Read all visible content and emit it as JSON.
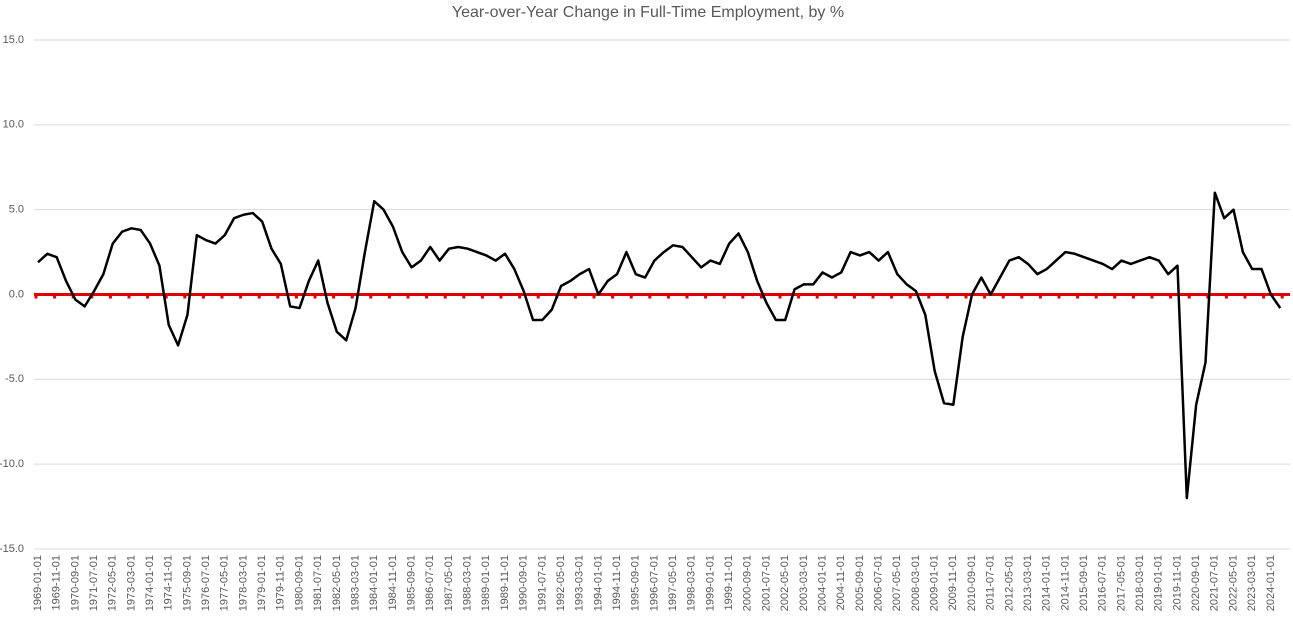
{
  "chart_data": {
    "type": "line",
    "title": "Year-over-Year Change in Full-Time Employment, by %",
    "categories": [
      "1969-01-01",
      null,
      "1969-11-01",
      null,
      "1970-09-01",
      null,
      "1971-07-01",
      null,
      "1972-05-01",
      null,
      "1973-03-01",
      null,
      "1974-01-01",
      null,
      "1974-11-01",
      null,
      "1975-09-01",
      null,
      "1976-07-01",
      null,
      "1977-05-01",
      null,
      "1978-03-01",
      null,
      "1979-01-01",
      null,
      "1979-11-01",
      null,
      "1980-09-01",
      null,
      "1981-07-01",
      null,
      "1982-05-01",
      null,
      "1983-03-01",
      null,
      "1984-01-01",
      null,
      "1984-11-01",
      null,
      "1985-09-01",
      null,
      "1986-07-01",
      null,
      "1987-05-01",
      null,
      "1988-03-01",
      null,
      "1989-01-01",
      null,
      "1989-11-01",
      null,
      "1990-09-01",
      null,
      "1991-07-01",
      null,
      "1992-05-01",
      null,
      "1993-03-01",
      null,
      "1994-01-01",
      null,
      "1994-11-01",
      null,
      "1995-09-01",
      null,
      "1996-07-01",
      null,
      "1997-05-01",
      null,
      "1998-03-01",
      null,
      "1999-01-01",
      null,
      "1999-11-01",
      null,
      "2000-09-01",
      null,
      "2001-07-01",
      null,
      "2002-05-01",
      null,
      "2003-03-01",
      null,
      "2004-01-01",
      null,
      "2004-11-01",
      null,
      "2005-09-01",
      null,
      "2006-07-01",
      null,
      "2007-05-01",
      null,
      "2008-03-01",
      null,
      "2009-01-01",
      null,
      "2009-11-01",
      null,
      "2010-09-01",
      null,
      "2011-07-01",
      null,
      "2012-05-01",
      null,
      "2013-03-01",
      null,
      "2014-01-01",
      null,
      "2014-11-01",
      null,
      "2015-09-01",
      null,
      "2016-07-01",
      null,
      "2017-05-01",
      null,
      "2018-03-01",
      null,
      "2019-01-01",
      null,
      "2019-11-01",
      null,
      "2020-09-01",
      null,
      "2021-07-01",
      null,
      "2022-05-01",
      null,
      "2023-03-01",
      null,
      "2024-01-01",
      null
    ],
    "values": [
      1.9,
      2.4,
      2.2,
      0.8,
      -0.3,
      -0.7,
      0.2,
      1.2,
      3.0,
      3.7,
      3.9,
      3.8,
      3.0,
      1.7,
      -1.8,
      -3.0,
      -1.2,
      3.5,
      3.2,
      3.0,
      3.5,
      4.5,
      4.7,
      4.8,
      4.3,
      2.7,
      1.8,
      -0.7,
      -0.8,
      0.8,
      2.0,
      -0.5,
      -2.2,
      -2.7,
      -0.8,
      2.5,
      5.5,
      5.0,
      4.0,
      2.5,
      1.6,
      2.0,
      2.8,
      2.0,
      2.7,
      2.8,
      2.7,
      2.5,
      2.3,
      2.0,
      2.4,
      1.5,
      0.2,
      -1.5,
      -1.5,
      -0.9,
      0.5,
      0.8,
      1.2,
      1.5,
      0.0,
      0.8,
      1.2,
      2.5,
      1.2,
      1.0,
      2.0,
      2.5,
      2.9,
      2.8,
      2.2,
      1.6,
      2.0,
      1.8,
      3.0,
      3.6,
      2.5,
      0.8,
      -0.5,
      -1.5,
      -1.5,
      0.3,
      0.6,
      0.6,
      1.3,
      1.0,
      1.3,
      2.5,
      2.3,
      2.5,
      2.0,
      2.5,
      1.2,
      0.6,
      0.2,
      -1.2,
      -4.5,
      -6.4,
      -6.5,
      -2.5,
      0.0,
      1.0,
      0.0,
      1.0,
      2.0,
      2.2,
      1.8,
      1.2,
      1.5,
      2.0,
      2.5,
      2.4,
      2.2,
      2.0,
      1.8,
      1.5,
      2.0,
      1.8,
      2.0,
      2.2,
      2.0,
      1.2,
      1.7,
      -12.0,
      -6.5,
      -4.0,
      6.0,
      4.5,
      5.0,
      2.5,
      1.5,
      1.5,
      0.0,
      -0.8
    ],
    "color": "#000000",
    "hline": {
      "value": 0,
      "color": "#e00000"
    },
    "ylim": [
      -15,
      15
    ],
    "yticks": [
      {
        "value": 15,
        "label": "15.0"
      },
      {
        "value": 10,
        "label": "10.0"
      },
      {
        "value": 5,
        "label": "5.0"
      },
      {
        "value": 0,
        "label": "0.0"
      },
      {
        "value": -5,
        "label": "-5.0"
      },
      {
        "value": -10,
        "label": "-10.0"
      },
      {
        "value": -15,
        "label": "-15.0"
      }
    ],
    "grid": true
  }
}
